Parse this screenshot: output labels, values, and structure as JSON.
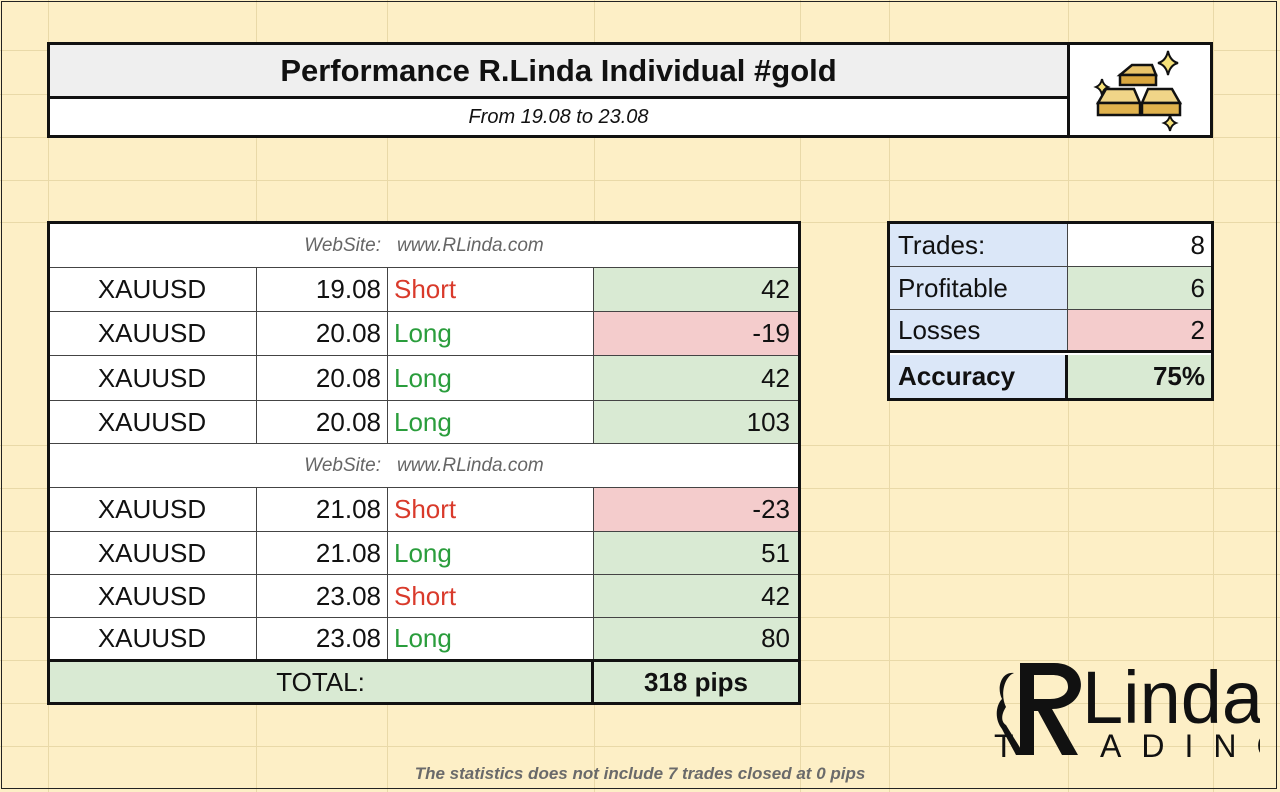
{
  "header": {
    "title": "Performance R.Linda Individual #gold",
    "subtitle": "From 19.08 to 23.08"
  },
  "website_banner": {
    "label": "WebSite:",
    "url": "www.RLinda.com"
  },
  "trades_group_1": [
    {
      "symbol": "XAUUSD",
      "date": "19.08",
      "direction": "Short",
      "pips": "42",
      "result": "profit"
    },
    {
      "symbol": "XAUUSD",
      "date": "20.08",
      "direction": "Long",
      "pips": "-19",
      "result": "loss"
    },
    {
      "symbol": "XAUUSD",
      "date": "20.08",
      "direction": "Long",
      "pips": "42",
      "result": "profit"
    },
    {
      "symbol": "XAUUSD",
      "date": "20.08",
      "direction": "Long",
      "pips": "103",
      "result": "profit"
    }
  ],
  "trades_group_2": [
    {
      "symbol": "XAUUSD",
      "date": "21.08",
      "direction": "Short",
      "pips": "-23",
      "result": "loss"
    },
    {
      "symbol": "XAUUSD",
      "date": "21.08",
      "direction": "Long",
      "pips": "51",
      "result": "profit"
    },
    {
      "symbol": "XAUUSD",
      "date": "23.08",
      "direction": "Short",
      "pips": "42",
      "result": "profit"
    },
    {
      "symbol": "XAUUSD",
      "date": "23.08",
      "direction": "Long",
      "pips": "80",
      "result": "profit"
    }
  ],
  "total": {
    "label": "TOTAL:",
    "value": "318 pips"
  },
  "stats": {
    "trades_label": "Trades:",
    "trades_value": "8",
    "profitable_label": "Profitable",
    "profitable_value": "6",
    "losses_label": "Losses",
    "losses_value": "2",
    "accuracy_label": "Accuracy",
    "accuracy_value": "75%"
  },
  "footnote": "The statistics does not include 7 trades closed at 0 pips",
  "logo": {
    "line1": "RLinda",
    "line2": "TRADING"
  },
  "colors": {
    "background": "#fdefc6",
    "profit_fill": "#d9ead3",
    "loss_fill": "#f4cccc",
    "short_text": "#d93a2b",
    "long_text": "#2a9d3c",
    "stat_label_fill": "#dbe7f8"
  }
}
